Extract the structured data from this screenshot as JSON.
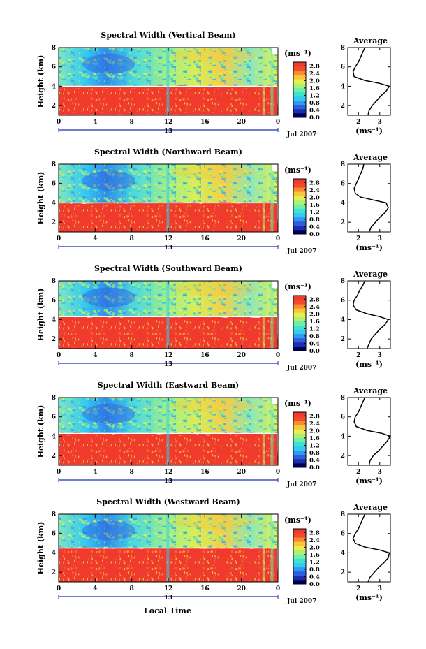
{
  "figure": {
    "xlabel": "Local Time",
    "units_label": "(ms⁻¹)",
    "avg_title": "Average",
    "avg_xlabel": "(ms⁻¹)",
    "height_label": "Height (km)",
    "date_label": "Jul 2007",
    "day_label": "13"
  },
  "colorbar": {
    "ticks": [
      "0.0",
      "0.4",
      "0.8",
      "1.2",
      "1.6",
      "2.0",
      "2.4",
      "2.8"
    ],
    "min": 0.0,
    "max": 3.0,
    "colors": [
      "#000060",
      "#1d2fa8",
      "#2f5de0",
      "#2f9af2",
      "#35cbf0",
      "#3fe2d0",
      "#6ef0a8",
      "#b0f070",
      "#e8ee50",
      "#f8c63a",
      "#f88a30",
      "#f24a2c",
      "#f03a2e"
    ]
  },
  "chart_data": [
    {
      "type": "heatmap",
      "title": "Spectral Width (Vertical Beam)",
      "xlabel": "",
      "ylabel": "Height (km)",
      "xlim": [
        0,
        24
      ],
      "ylim": [
        1,
        8
      ],
      "xticks": [
        "0",
        "4",
        "8",
        "12",
        "16",
        "20",
        "0"
      ],
      "yticks": [
        "2",
        "4",
        "6",
        "8"
      ],
      "boundary_height_km": 4.0,
      "average_profile": {
        "xlim": [
          1.5,
          3.5
        ],
        "xticks": [
          "2",
          "3"
        ],
        "yticks": [
          "2",
          "4",
          "6",
          "8"
        ],
        "height": [
          1.0,
          1.5,
          2.0,
          2.5,
          3.0,
          3.5,
          4.0,
          4.3,
          4.6,
          5.0,
          5.5,
          6.0,
          6.5,
          7.0,
          7.5,
          8.0
        ],
        "value": [
          2.45,
          2.5,
          2.65,
          2.85,
          3.05,
          3.3,
          3.45,
          3.0,
          2.3,
          1.8,
          1.75,
          1.85,
          2.0,
          2.1,
          2.2,
          2.3
        ]
      }
    },
    {
      "type": "heatmap",
      "title": "Spectral Width (Northward Beam)",
      "xlabel": "",
      "ylabel": "Height (km)",
      "xlim": [
        0,
        24
      ],
      "ylim": [
        1,
        8
      ],
      "xticks": [
        "0",
        "4",
        "8",
        "12",
        "16",
        "20",
        "0"
      ],
      "yticks": [
        "2",
        "4",
        "6",
        "8"
      ],
      "boundary_height_km": 4.0,
      "average_profile": {
        "xlim": [
          1.5,
          3.5
        ],
        "xticks": [
          "2",
          "3"
        ],
        "yticks": [
          "2",
          "4",
          "6",
          "8"
        ],
        "height": [
          1.0,
          1.5,
          2.0,
          2.5,
          3.0,
          3.5,
          4.0,
          4.3,
          4.6,
          5.0,
          5.5,
          6.0,
          6.5,
          7.0,
          7.5,
          8.0
        ],
        "value": [
          2.5,
          2.6,
          2.8,
          3.0,
          3.25,
          3.4,
          3.3,
          2.7,
          2.1,
          1.85,
          1.8,
          1.9,
          2.0,
          2.1,
          2.2,
          2.25
        ]
      }
    },
    {
      "type": "heatmap",
      "title": "Spectral Width (Southward Beam)",
      "xlabel": "",
      "ylabel": "Height (km)",
      "xlim": [
        0,
        24
      ],
      "ylim": [
        1,
        8
      ],
      "xticks": [
        "0",
        "4",
        "8",
        "12",
        "16",
        "20",
        "0"
      ],
      "yticks": [
        "2",
        "4",
        "6",
        "8"
      ],
      "boundary_height_km": 4.3,
      "average_profile": {
        "xlim": [
          1.5,
          3.5
        ],
        "xticks": [
          "2",
          "3"
        ],
        "yticks": [
          "2",
          "4",
          "6",
          "8"
        ],
        "height": [
          1.0,
          1.5,
          2.0,
          2.5,
          3.0,
          3.5,
          4.0,
          4.3,
          4.6,
          5.0,
          5.5,
          6.0,
          6.5,
          7.0,
          7.5,
          8.0
        ],
        "value": [
          2.4,
          2.5,
          2.6,
          2.8,
          3.0,
          3.25,
          3.4,
          3.0,
          2.4,
          1.9,
          1.75,
          1.8,
          1.95,
          2.05,
          2.2,
          2.3
        ]
      }
    },
    {
      "type": "heatmap",
      "title": "Spectral Width (Eastward Beam)",
      "xlabel": "",
      "ylabel": "Height (km)",
      "xlim": [
        0,
        24
      ],
      "ylim": [
        1,
        8
      ],
      "xticks": [
        "0",
        "4",
        "8",
        "12",
        "16",
        "20",
        "0"
      ],
      "yticks": [
        "2",
        "4",
        "6",
        "8"
      ],
      "boundary_height_km": 4.3,
      "average_profile": {
        "xlim": [
          1.5,
          3.5
        ],
        "xticks": [
          "2",
          "3"
        ],
        "yticks": [
          "2",
          "4",
          "6",
          "8"
        ],
        "height": [
          1.0,
          1.5,
          2.0,
          2.5,
          3.0,
          3.5,
          4.0,
          4.3,
          4.6,
          5.0,
          5.5,
          6.0,
          6.5,
          7.0,
          7.5,
          8.0
        ],
        "value": [
          2.5,
          2.55,
          2.7,
          2.95,
          3.15,
          3.35,
          3.5,
          3.1,
          2.4,
          1.9,
          1.8,
          1.85,
          2.0,
          2.1,
          2.2,
          2.3
        ]
      }
    },
    {
      "type": "heatmap",
      "title": "Spectral Width (Westward Beam)",
      "xlabel": "Local Time",
      "ylabel": "Height (km)",
      "xlim": [
        0,
        24
      ],
      "ylim": [
        1,
        8
      ],
      "xticks": [
        "0",
        "4",
        "8",
        "12",
        "16",
        "20",
        "0"
      ],
      "yticks": [
        "2",
        "4",
        "6",
        "8"
      ],
      "boundary_height_km": 4.5,
      "average_profile": {
        "xlim": [
          1.5,
          3.5
        ],
        "xticks": [
          "2",
          "3"
        ],
        "yticks": [
          "2",
          "4",
          "6",
          "8"
        ],
        "height": [
          1.0,
          1.5,
          2.0,
          2.5,
          3.0,
          3.5,
          4.0,
          4.3,
          4.6,
          5.0,
          5.5,
          6.0,
          6.5,
          7.0,
          7.5,
          8.0
        ],
        "value": [
          2.45,
          2.55,
          2.75,
          2.95,
          3.2,
          3.4,
          3.45,
          3.0,
          2.3,
          1.85,
          1.75,
          1.85,
          2.0,
          2.1,
          2.2,
          2.3
        ]
      }
    }
  ]
}
